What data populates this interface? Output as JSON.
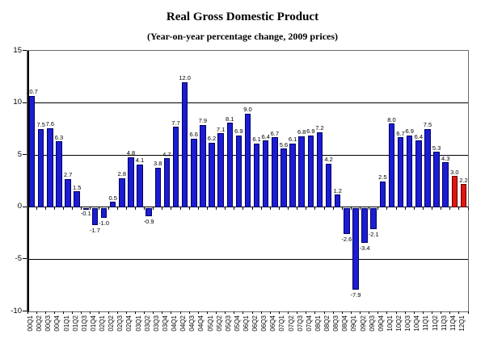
{
  "header": {
    "title": "Real Gross Domestic Product",
    "subtitle": "(Year-on-year percentage change, 2009 prices)"
  },
  "chart_data": {
    "type": "bar",
    "title": "Real Gross Domestic Product",
    "subtitle": "(Year-on-year percentage change, 2009 prices)",
    "categories": [
      "00Q1",
      "00Q2",
      "00Q3",
      "00Q4",
      "01Q1",
      "01Q2",
      "01Q3",
      "01Q4",
      "02Q1",
      "02Q2",
      "02Q3",
      "02Q4",
      "03Q1",
      "03Q2",
      "03Q3",
      "03Q4",
      "04Q1",
      "04Q2",
      "04Q3",
      "04Q4",
      "05Q1",
      "05Q2",
      "05Q3",
      "05Q4",
      "06Q1",
      "06Q2",
      "06Q3",
      "06Q4",
      "07Q1",
      "07Q2",
      "07Q3",
      "07Q4",
      "08Q1",
      "08Q2",
      "08Q3",
      "08Q4",
      "09Q1",
      "09Q2",
      "09Q3",
      "09Q4",
      "10Q1",
      "10Q2",
      "10Q3",
      "10Q4",
      "11Q1",
      "11Q2",
      "11Q3",
      "11Q4",
      "12Q1"
    ],
    "values": [
      10.7,
      7.5,
      7.6,
      6.3,
      2.7,
      1.5,
      -0.1,
      -1.7,
      -1.0,
      0.5,
      2.8,
      4.8,
      4.1,
      -0.9,
      3.8,
      4.7,
      7.7,
      12.0,
      6.6,
      7.9,
      6.2,
      7.1,
      8.1,
      6.9,
      9.0,
      6.1,
      6.4,
      6.7,
      5.6,
      6.1,
      6.8,
      6.9,
      7.2,
      4.2,
      1.2,
      -2.6,
      -7.9,
      -3.4,
      -2.1,
      2.5,
      8.0,
      6.7,
      6.9,
      6.4,
      7.5,
      5.3,
      4.3,
      3.0,
      2.2
    ],
    "xlabel": "",
    "ylabel": "",
    "ylim": [
      -10,
      15
    ],
    "yticks": [
      15,
      10,
      5,
      0,
      -5,
      -10
    ],
    "grid": true,
    "legend": false,
    "data_labels": true,
    "x_labels_rotated_degrees": 90,
    "bar_color": "#1c1cd2",
    "bar_border_color": "#000060",
    "highlight_color": "#e3130d",
    "highlight_border_color": "#5a0000",
    "highlight_from_index": 47
  }
}
